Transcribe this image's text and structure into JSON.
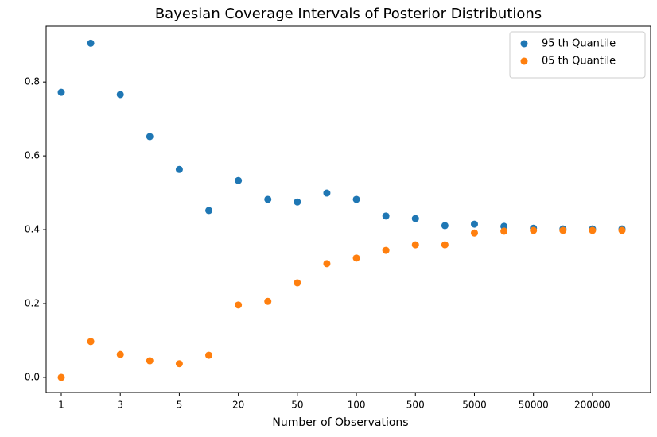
{
  "chart_data": {
    "type": "scatter",
    "title": "Bayesian Coverage Intervals of Posterior Distributions",
    "x_label": "Number of Observations",
    "categories": [
      "1",
      null,
      "3",
      null,
      "5",
      null,
      "20",
      null,
      "50",
      null,
      "100",
      null,
      "500",
      null,
      "5000",
      null,
      "50000",
      null,
      "200000",
      null
    ],
    "series": [
      {
        "name": "95 th Quantile",
        "color": "#1f77b4",
        "values": [
          0.772,
          0.905,
          0.766,
          0.652,
          0.563,
          0.452,
          0.533,
          0.482,
          0.475,
          0.499,
          0.482,
          0.437,
          0.43,
          0.411,
          0.415,
          0.409,
          0.404,
          0.402,
          0.402,
          0.402
        ]
      },
      {
        "name": "05 th Quantile",
        "color": "#ff7f0e",
        "values": [
          0.0,
          0.097,
          0.062,
          0.045,
          0.037,
          0.06,
          0.196,
          0.206,
          0.256,
          0.308,
          0.323,
          0.344,
          0.359,
          0.359,
          0.391,
          0.396,
          0.398,
          0.398,
          0.398,
          0.398
        ]
      }
    ],
    "ylim": [
      -0.041,
      0.951
    ],
    "yticks": [
      {
        "value": 0,
        "label": "0.0"
      },
      0.2,
      0.4,
      0.6,
      0.8
    ],
    "grid": false,
    "legend": "upper-right"
  }
}
